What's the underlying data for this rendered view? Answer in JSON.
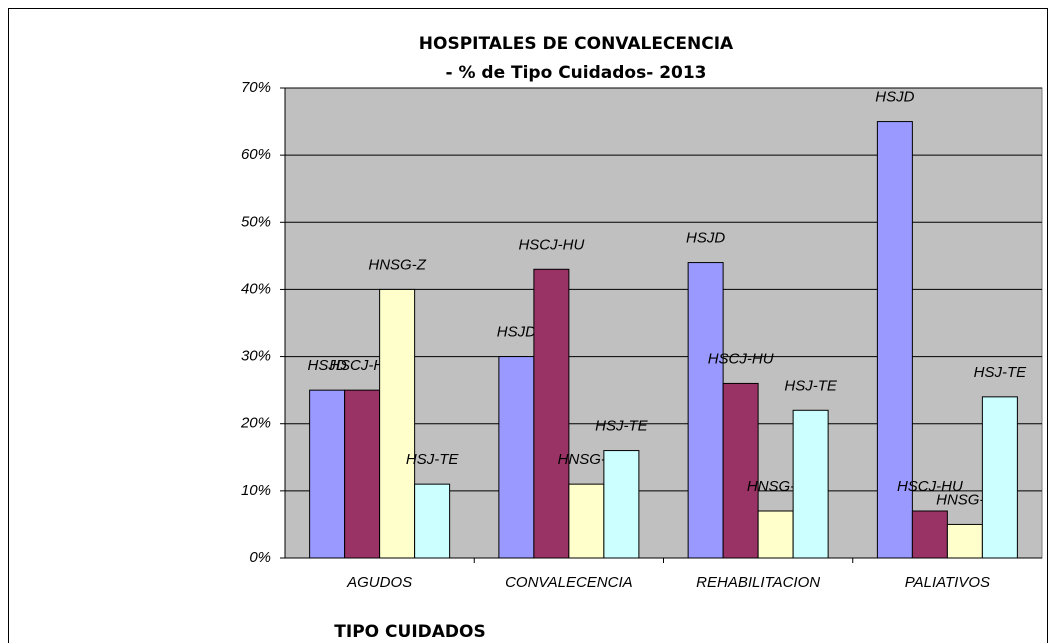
{
  "chart_data": {
    "type": "bar",
    "title": "HOSPITALES DE CONVALECENCIA",
    "subtitle": "- % de Tipo Cuidados- 2013",
    "x_label": "TIPO CUIDADOS",
    "categories": [
      "AGUDOS",
      "CONVALECENCIA",
      "REHABILITACION",
      "PALIATIVOS"
    ],
    "series": [
      {
        "name": "HSJD",
        "color": "#9999ff",
        "values": [
          25,
          30,
          44,
          65
        ]
      },
      {
        "name": "HSCJ-HU",
        "color": "#993366",
        "values": [
          25,
          43,
          26,
          7
        ]
      },
      {
        "name": "HNSG-Z",
        "color": "#ffffcc",
        "values": [
          40,
          11,
          7,
          5
        ]
      },
      {
        "name": "HSJ-TE",
        "color": "#ccffff",
        "values": [
          11,
          16,
          22,
          24
        ]
      }
    ],
    "ylim": [
      0,
      70
    ],
    "yticks": [
      {
        "value": 0,
        "label": "0%"
      },
      {
        "value": 10,
        "label": "10%"
      },
      {
        "value": 20,
        "label": "20%"
      },
      {
        "value": 30,
        "label": "30%"
      },
      {
        "value": 40,
        "label": "40%"
      },
      {
        "value": 50,
        "label": "50%"
      },
      {
        "value": 60,
        "label": "60%"
      },
      {
        "value": 70,
        "label": "70%"
      }
    ],
    "grid": true,
    "plot_background": "#c0c0c0"
  }
}
